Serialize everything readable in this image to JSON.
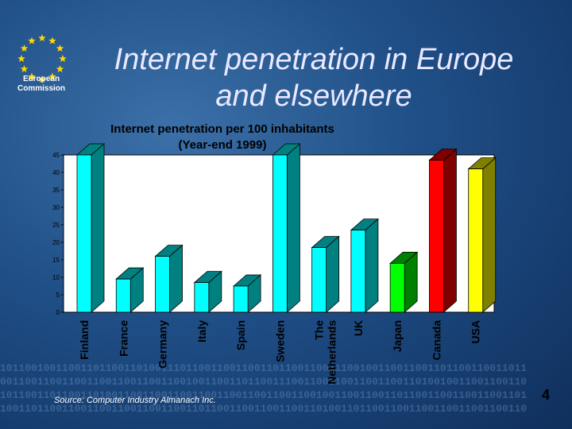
{
  "logo": {
    "line1": "European",
    "line2": "Commission"
  },
  "slide": {
    "title_line1": "Internet penetration in Europe",
    "title_line2": "and elsewhere",
    "source": "Source: Computer Industry Almanach Inc.",
    "page_number": "4"
  },
  "background_binary": [
    "1011001001100110110011010011101100110011001101100110011100100110011001101100110011011",
    "0011001100110011001100110011001001100110110011100110011001100110011010010011001100110",
    "1011001101100110100110011001100110011001100110011001001100110011011001100110011001101",
    "1001101100110011001100110011001101100110011001100110100110110011001100110011001100110"
  ],
  "chart_data": {
    "type": "bar",
    "title_line1": "Internet penetration per 100 inhabitants",
    "title_line2": "(Year-end 1999)",
    "categories": [
      "Finland",
      "France",
      "Germany",
      "Italy",
      "Spain",
      "Sweden",
      "The Netherlands",
      "UK",
      "Japan",
      "Canada",
      "USA"
    ],
    "category_lines": [
      [
        "Finland"
      ],
      [
        "France"
      ],
      [
        "Germany"
      ],
      [
        "Italy"
      ],
      [
        "Spain"
      ],
      [
        "Sweden"
      ],
      [
        "The",
        "Netherlands"
      ],
      [
        "UK"
      ],
      [
        "Japan"
      ],
      [
        "Canada"
      ],
      [
        "USA"
      ]
    ],
    "values": [
      45,
      9.5,
      16,
      8.5,
      7.5,
      45,
      18.5,
      23.5,
      14,
      43.5,
      41
    ],
    "bar_colors": [
      "#00ffff",
      "#00ffff",
      "#00ffff",
      "#00ffff",
      "#00ffff",
      "#00ffff",
      "#00ffff",
      "#00ffff",
      "#00ff00",
      "#ff0000",
      "#ffff00"
    ],
    "side_colors": [
      "#008080",
      "#008080",
      "#008080",
      "#008080",
      "#008080",
      "#008080",
      "#008080",
      "#008080",
      "#008000",
      "#800000",
      "#808000"
    ],
    "ylim": [
      0,
      45
    ],
    "yticks": [
      0,
      5,
      10,
      15,
      20,
      25,
      30,
      35,
      40,
      45
    ],
    "xlabel": "",
    "ylabel": "",
    "grid": false,
    "plot_area_color": "#ffffff"
  }
}
